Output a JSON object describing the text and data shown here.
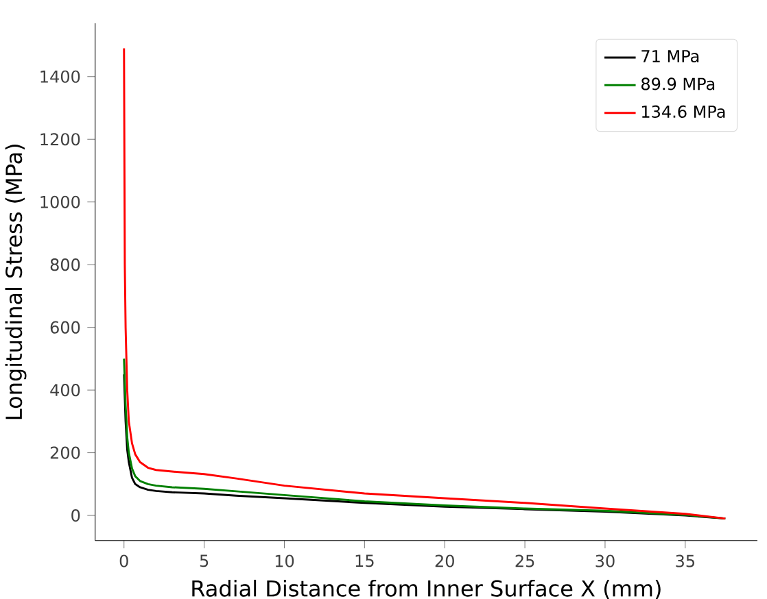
{
  "chart_data": {
    "type": "line",
    "xlabel": "Radial Distance from Inner Surface X (mm)",
    "ylabel": "Longitudinal Stress (MPa)",
    "xlim": [
      -1.8,
      39.5
    ],
    "ylim": [
      -80,
      1570
    ],
    "xticks": [
      0,
      5,
      10,
      15,
      20,
      25,
      30,
      35
    ],
    "yticks": [
      0,
      200,
      400,
      600,
      800,
      1000,
      1200,
      1400
    ],
    "legend": "top right",
    "grid": false,
    "series": [
      {
        "name": "71 MPa",
        "color": "#000000",
        "x": [
          0,
          0.1,
          0.2,
          0.3,
          0.5,
          0.7,
          1,
          1.5,
          2,
          3,
          5,
          7,
          10,
          15,
          20,
          25,
          30,
          35,
          37.5
        ],
        "values": [
          450,
          300,
          210,
          170,
          120,
          100,
          90,
          82,
          78,
          74,
          70,
          63,
          55,
          40,
          28,
          20,
          12,
          0,
          -10
        ]
      },
      {
        "name": "89.9 MPa",
        "color": "#008000",
        "x": [
          0,
          0.1,
          0.2,
          0.3,
          0.5,
          0.7,
          1,
          1.5,
          2,
          3,
          5,
          7,
          10,
          15,
          20,
          25,
          30,
          35,
          37.5
        ],
        "values": [
          500,
          350,
          250,
          200,
          150,
          125,
          110,
          100,
          95,
          90,
          85,
          77,
          65,
          45,
          32,
          22,
          15,
          2,
          -10
        ]
      },
      {
        "name": "134.6 MPa",
        "color": "#ff0000",
        "x": [
          0,
          0.05,
          0.1,
          0.2,
          0.3,
          0.5,
          0.7,
          1,
          1.5,
          2,
          3,
          5,
          7,
          10,
          15,
          20,
          25,
          30,
          35,
          37.5
        ],
        "values": [
          1490,
          800,
          600,
          400,
          300,
          230,
          195,
          170,
          152,
          145,
          140,
          132,
          118,
          95,
          70,
          55,
          40,
          22,
          5,
          -10
        ]
      }
    ]
  }
}
